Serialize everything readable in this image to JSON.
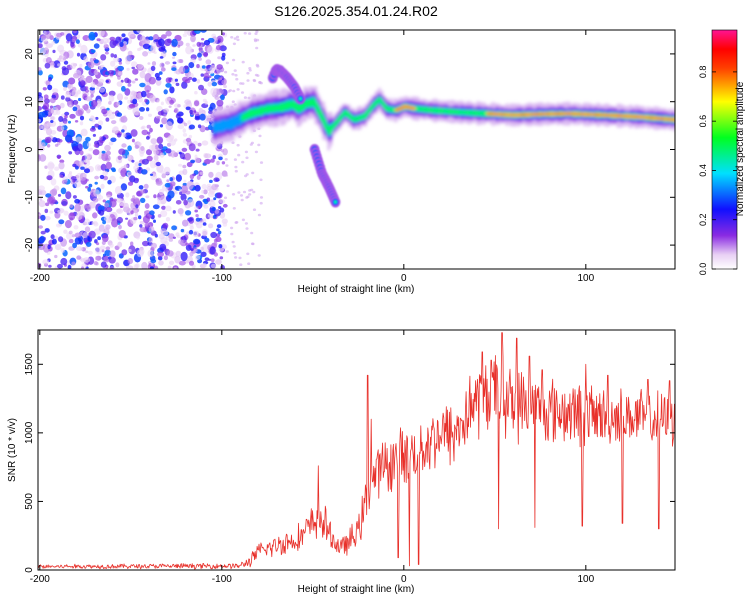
{
  "title": "S126.2025.354.01.24.R02",
  "chart_data": [
    {
      "type": "heatmap",
      "xlabel": "Height of straight line (km)",
      "ylabel": "Frequency (Hz)",
      "xlim": [
        -201,
        149
      ],
      "ylim": [
        -25,
        25
      ],
      "xticks": [
        -200,
        -100,
        0,
        100
      ],
      "yticks": [
        -20,
        -10,
        0,
        10,
        20
      ],
      "colorbar": {
        "label": "Normalized spectral amplitude",
        "range": [
          0.0,
          0.97
        ],
        "ticks": [
          0.0,
          0.2,
          0.4,
          0.6,
          0.8
        ]
      },
      "noise_region_x": [
        -201,
        -98
      ],
      "ridge": {
        "points": [
          [
            -105,
            4.5
          ],
          [
            -95,
            5.5
          ],
          [
            -85,
            7.5
          ],
          [
            -75,
            8.5
          ],
          [
            -68,
            8.8
          ],
          [
            -62,
            9.5
          ],
          [
            -58,
            8.5
          ],
          [
            -55,
            9.5
          ],
          [
            -50,
            10.0
          ],
          [
            -46,
            7.0
          ],
          [
            -42,
            3.8
          ],
          [
            -38,
            5.5
          ],
          [
            -33,
            7.8
          ],
          [
            -28,
            6.2
          ],
          [
            -22,
            7.0
          ],
          [
            -18,
            9.0
          ],
          [
            -14,
            10.5
          ],
          [
            -10,
            8.5
          ],
          [
            -5,
            8.2
          ],
          [
            0,
            9.0
          ],
          [
            5,
            8.6
          ],
          [
            15,
            8.2
          ],
          [
            30,
            7.8
          ],
          [
            45,
            7.5
          ],
          [
            60,
            7.2
          ],
          [
            75,
            7.4
          ],
          [
            90,
            7.5
          ],
          [
            110,
            7.2
          ],
          [
            130,
            6.8
          ],
          [
            149,
            6.2
          ]
        ],
        "peak_x": [
          45,
          149
        ]
      },
      "branch_up": [
        [
          -72,
          15.0
        ],
        [
          -70,
          16.8
        ],
        [
          -68,
          16.5
        ],
        [
          -64,
          15.0
        ],
        [
          -60,
          13.0
        ],
        [
          -56,
          10.0
        ]
      ],
      "branch_down": [
        [
          -49,
          0.0
        ],
        [
          -45,
          -5.0
        ],
        [
          -41,
          -8.0
        ],
        [
          -37,
          -11.5
        ]
      ]
    },
    {
      "type": "line",
      "xlabel": "Height of straight line (km)",
      "ylabel": "SNR (10 * v/v)",
      "xlim": [
        -201,
        149
      ],
      "ylim": [
        0,
        1750
      ],
      "xticks": [
        -200,
        -100,
        0,
        100
      ],
      "yticks": [
        0,
        500,
        1000,
        1500
      ],
      "color": "#e8302a",
      "envelope": {
        "x": [
          -201,
          -90,
          -85,
          -80,
          -70,
          -60,
          -55,
          -50,
          -45,
          -40,
          -35,
          -30,
          -25,
          -22,
          -20,
          -18,
          -15,
          -10,
          -5,
          0,
          5,
          10,
          15,
          20,
          25,
          30,
          35,
          40,
          45,
          50,
          55,
          60,
          70,
          80,
          90,
          100,
          110,
          120,
          130,
          140,
          149
        ],
        "mean": [
          25,
          30,
          60,
          130,
          180,
          220,
          260,
          340,
          380,
          240,
          160,
          200,
          290,
          430,
          560,
          640,
          700,
          760,
          800,
          840,
          860,
          890,
          950,
          1000,
          980,
          1020,
          1150,
          1240,
          1280,
          1290,
          1270,
          1220,
          1180,
          1160,
          1150,
          1130,
          1120,
          1120,
          1110,
          1100,
          1100
        ],
        "amplitude": [
          15,
          20,
          40,
          60,
          80,
          90,
          110,
          130,
          150,
          90,
          70,
          90,
          120,
          150,
          170,
          180,
          190,
          200,
          200,
          200,
          200,
          210,
          220,
          230,
          240,
          250,
          260,
          270,
          280,
          280,
          270,
          260,
          250,
          240,
          230,
          220,
          210,
          200,
          200,
          190,
          190
        ]
      },
      "spikes": [
        [
          -47,
          760
        ],
        [
          -20,
          1420
        ],
        [
          -18,
          1100
        ],
        [
          43,
          1590
        ],
        [
          48,
          1530
        ],
        [
          54,
          1730
        ],
        [
          62,
          1690
        ],
        [
          69,
          1560
        ],
        [
          76,
          1460
        ],
        [
          100,
          1500
        ],
        [
          112,
          1420
        ],
        [
          134,
          1390
        ],
        [
          146,
          1380
        ]
      ],
      "dips": [
        [
          -3,
          90
        ],
        [
          3,
          30
        ],
        [
          8,
          40
        ],
        [
          52,
          300
        ],
        [
          72,
          310
        ],
        [
          98,
          320
        ],
        [
          120,
          340
        ],
        [
          140,
          300
        ]
      ]
    }
  ]
}
